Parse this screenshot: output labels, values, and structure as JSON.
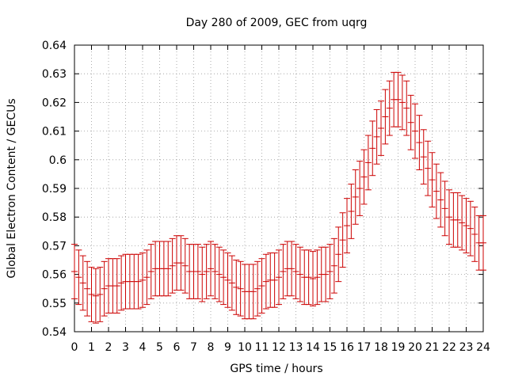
{
  "chart_data": {
    "type": "line",
    "style": "error-bars",
    "title": "Day 280 of 2009, GEC from uqrg",
    "xlabel": "GPS time / hours",
    "ylabel": "Global Electron Content / GECUs",
    "xlim": [
      0,
      24
    ],
    "ylim": [
      0.54,
      0.64
    ],
    "grid": true,
    "xticks": [
      "0",
      "1",
      "2",
      "3",
      "4",
      "5",
      "6",
      "7",
      "8",
      "9",
      "10",
      "11",
      "12",
      "13",
      "14",
      "15",
      "16",
      "17",
      "18",
      "19",
      "20",
      "21",
      "22",
      "23",
      "24"
    ],
    "yticks": [
      "0.54",
      "0.55",
      "0.56",
      "0.57",
      "0.58",
      "0.59",
      "0.6",
      "0.61",
      "0.62",
      "0.63",
      "0.64"
    ],
    "series": [
      {
        "name": "GEC",
        "color": "#cc0000",
        "error": 0.0095,
        "x": [
          0,
          0.25,
          0.5,
          0.75,
          1,
          1.25,
          1.5,
          1.75,
          2,
          2.25,
          2.5,
          2.75,
          3,
          3.25,
          3.5,
          3.75,
          4,
          4.25,
          4.5,
          4.75,
          5,
          5.25,
          5.5,
          5.75,
          6,
          6.25,
          6.5,
          6.75,
          7,
          7.25,
          7.5,
          7.75,
          8,
          8.25,
          8.5,
          8.75,
          9,
          9.25,
          9.5,
          9.75,
          10,
          10.25,
          10.5,
          10.75,
          11,
          11.25,
          11.5,
          11.75,
          12,
          12.25,
          12.5,
          12.75,
          13,
          13.25,
          13.5,
          13.75,
          14,
          14.25,
          14.5,
          14.75,
          15,
          15.25,
          15.5,
          15.75,
          16,
          16.25,
          16.5,
          16.75,
          17,
          17.25,
          17.5,
          17.75,
          18,
          18.25,
          18.5,
          18.75,
          19,
          19.25,
          19.5,
          19.75,
          20,
          20.25,
          20.5,
          20.75,
          21,
          21.25,
          21.5,
          21.75,
          22,
          22.25,
          22.5,
          22.75,
          23,
          23.25,
          23.5,
          23.75,
          24
        ],
        "y": [
          0.561,
          0.559,
          0.557,
          0.555,
          0.553,
          0.5525,
          0.553,
          0.555,
          0.556,
          0.556,
          0.556,
          0.557,
          0.5575,
          0.5575,
          0.5575,
          0.5575,
          0.558,
          0.559,
          0.561,
          0.562,
          0.562,
          0.562,
          0.562,
          0.563,
          0.564,
          0.564,
          0.563,
          0.561,
          0.561,
          0.561,
          0.56,
          0.561,
          0.562,
          0.561,
          0.56,
          0.559,
          0.558,
          0.557,
          0.5555,
          0.555,
          0.554,
          0.554,
          0.554,
          0.555,
          0.556,
          0.5575,
          0.558,
          0.558,
          0.559,
          0.561,
          0.562,
          0.562,
          0.561,
          0.56,
          0.559,
          0.559,
          0.5585,
          0.559,
          0.56,
          0.56,
          0.561,
          0.563,
          0.567,
          0.572,
          0.577,
          0.582,
          0.587,
          0.59,
          0.594,
          0.599,
          0.604,
          0.608,
          0.611,
          0.615,
          0.618,
          0.621,
          0.621,
          0.62,
          0.618,
          0.613,
          0.61,
          0.606,
          0.601,
          0.597,
          0.593,
          0.589,
          0.586,
          0.583,
          0.58,
          0.579,
          0.579,
          0.578,
          0.577,
          0.576,
          0.574,
          0.571,
          0.571
        ]
      }
    ]
  }
}
